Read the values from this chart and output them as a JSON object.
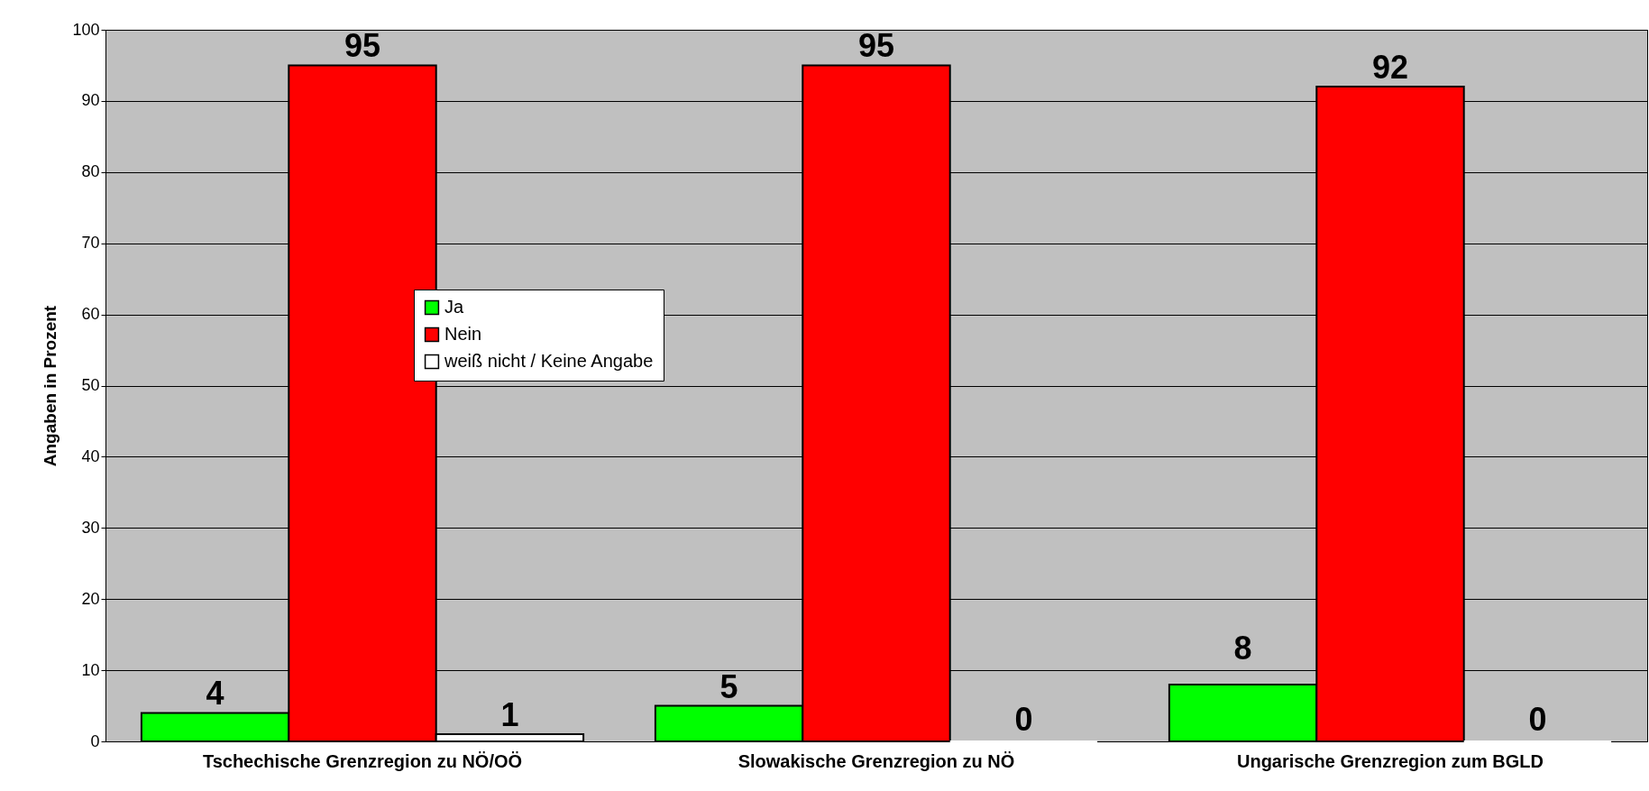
{
  "chart_data": {
    "type": "bar",
    "ylabel": "Angaben in Prozent",
    "categories": [
      "Tschechische Grenzregion zu NÖ/OÖ",
      "Slowakische Grenzregion zu NÖ",
      "Ungarische Grenzregion zum BGLD"
    ],
    "series": [
      {
        "name": "Ja",
        "color": "#00ff00",
        "values": [
          4,
          5,
          8
        ]
      },
      {
        "name": "Nein",
        "color": "#ff0000",
        "values": [
          95,
          95,
          92
        ]
      },
      {
        "name": "weiß nicht / Keine Angabe",
        "color": "#ffffff",
        "values": [
          1,
          0,
          0
        ]
      }
    ],
    "ylim": [
      0,
      100
    ],
    "yticks": [
      0,
      10,
      20,
      30,
      40,
      50,
      60,
      70,
      80,
      90,
      100
    ],
    "grid": "y",
    "legend": "left",
    "data_labels": true
  }
}
